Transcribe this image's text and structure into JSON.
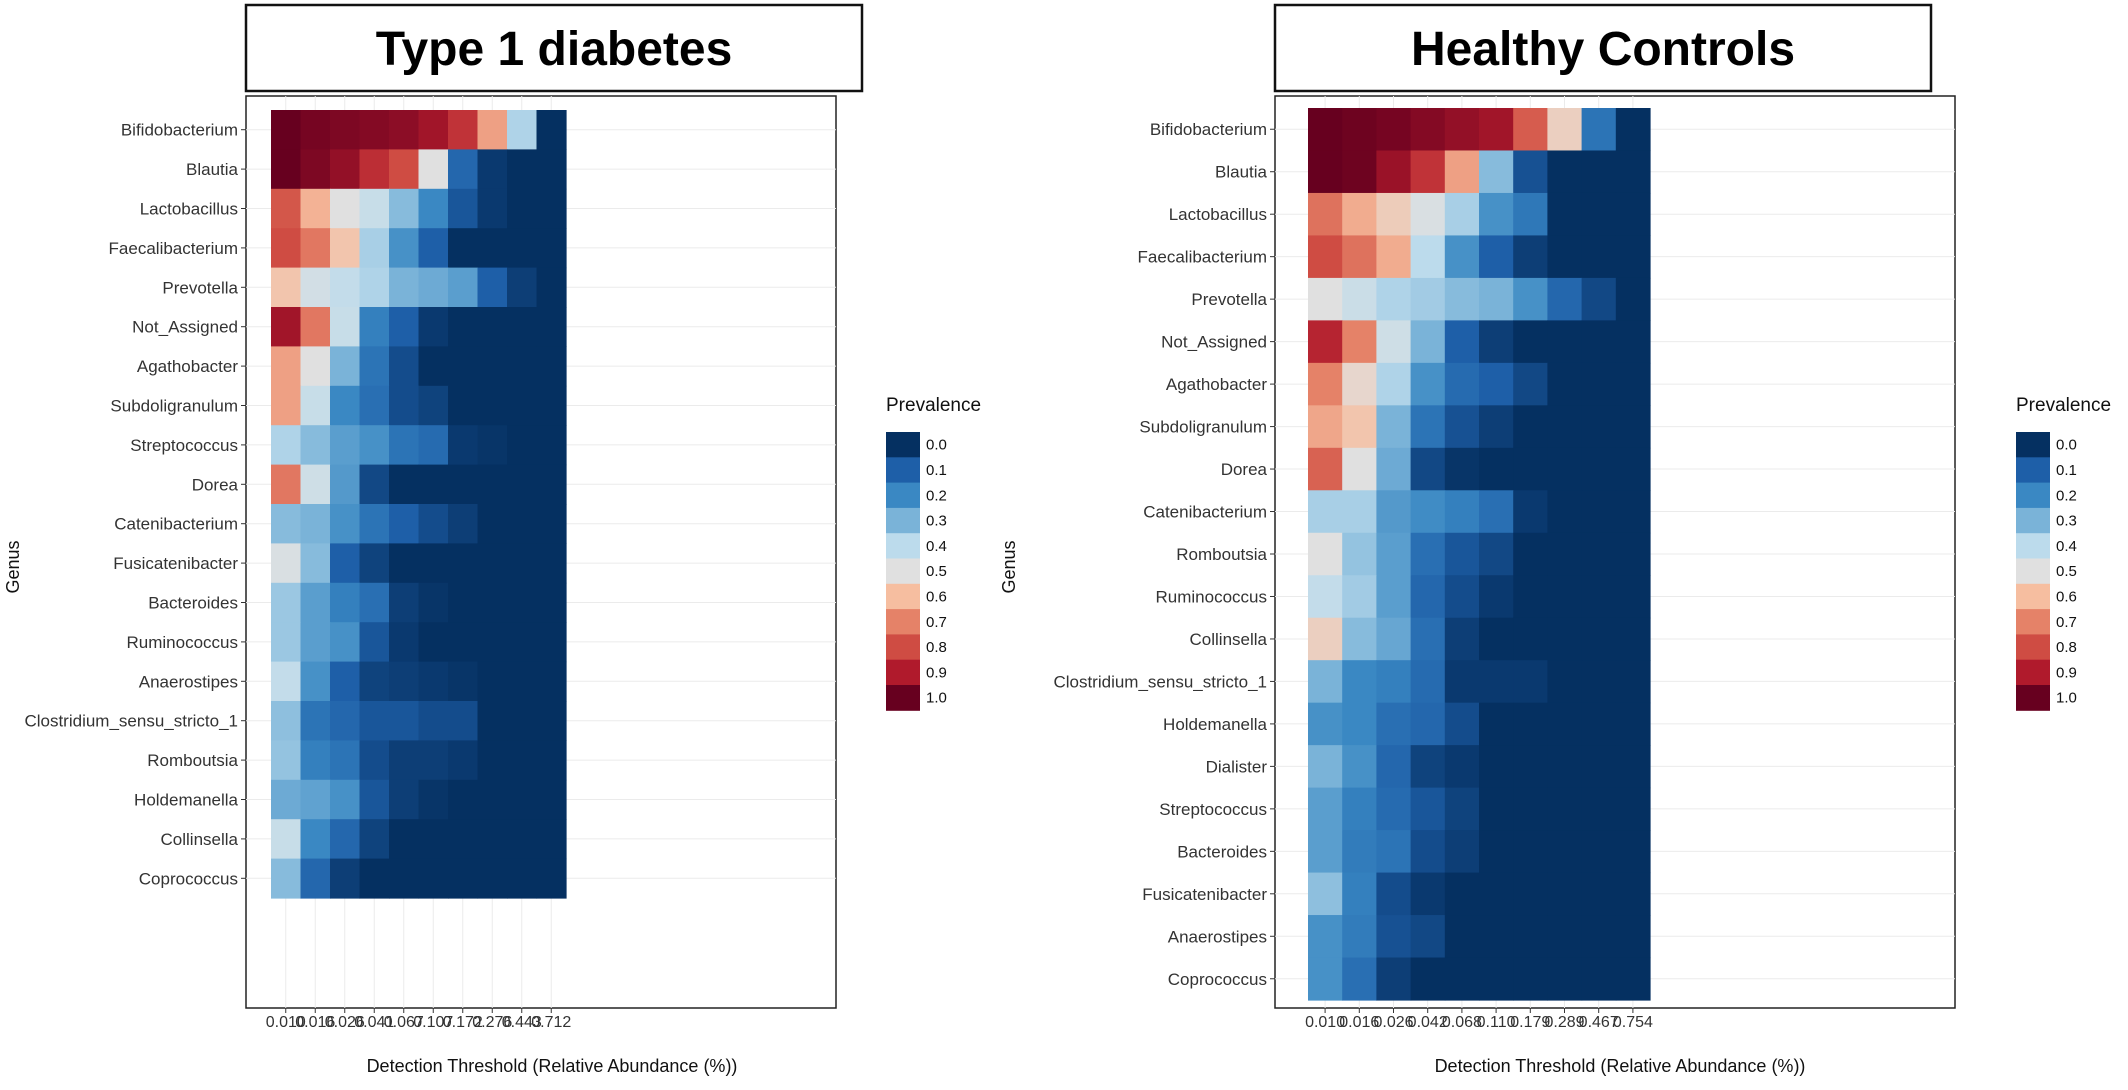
{
  "chart_data": [
    {
      "type": "heatmap",
      "title": "Type 1 diabetes",
      "xlabel": "Detection Threshold (Relative Abundance (%))",
      "ylabel": "Genus",
      "x": [
        "0.010",
        "0.016",
        "0.026",
        "0.041",
        "0.067",
        "0.107",
        "0.172",
        "0.276",
        "0.443",
        "0.712"
      ],
      "y": [
        "Bifidobacterium",
        "Blautia",
        "Lactobacillus",
        "Faecalibacterium",
        "Prevotella",
        "Not_Assigned",
        "Agathobacter",
        "Subdoligranulum",
        "Streptococcus",
        "Dorea",
        "Catenibacterium",
        "Fusicatenibacter",
        "Bacteroides",
        "Ruminococcus",
        "Anaerostipes",
        "Clostridium_sensu_stricto_1",
        "Romboutsia",
        "Holdemanella",
        "Collinsella",
        "Coprococcus"
      ],
      "values": [
        [
          1.0,
          0.98,
          0.97,
          0.96,
          0.95,
          0.92,
          0.85,
          0.65,
          0.38,
          0.0
        ],
        [
          1.0,
          0.97,
          0.94,
          0.86,
          0.8,
          0.5,
          0.12,
          0.02,
          0.0,
          0.0
        ],
        [
          0.78,
          0.62,
          0.5,
          0.43,
          0.32,
          0.2,
          0.08,
          0.02,
          0.0,
          0.0
        ],
        [
          0.8,
          0.72,
          0.58,
          0.37,
          0.22,
          0.1,
          0.0,
          0.0,
          0.0,
          0.0
        ],
        [
          0.58,
          0.46,
          0.42,
          0.38,
          0.3,
          0.28,
          0.25,
          0.1,
          0.03,
          0.0
        ],
        [
          0.92,
          0.72,
          0.43,
          0.18,
          0.1,
          0.02,
          0.0,
          0.0,
          0.0,
          0.0
        ],
        [
          0.65,
          0.5,
          0.3,
          0.15,
          0.06,
          0.0,
          0.0,
          0.0,
          0.0,
          0.0
        ],
        [
          0.65,
          0.43,
          0.2,
          0.14,
          0.06,
          0.04,
          0.0,
          0.0,
          0.0,
          0.0
        ],
        [
          0.38,
          0.32,
          0.25,
          0.22,
          0.15,
          0.13,
          0.02,
          0.01,
          0.0,
          0.0
        ],
        [
          0.72,
          0.45,
          0.24,
          0.05,
          0.0,
          0.0,
          0.0,
          0.0,
          0.0,
          0.0
        ],
        [
          0.32,
          0.3,
          0.22,
          0.15,
          0.1,
          0.06,
          0.03,
          0.0,
          0.0,
          0.0
        ],
        [
          0.48,
          0.32,
          0.1,
          0.04,
          0.0,
          0.0,
          0.0,
          0.0,
          0.0,
          0.0
        ],
        [
          0.35,
          0.25,
          0.18,
          0.14,
          0.03,
          0.01,
          0.0,
          0.0,
          0.0,
          0.0
        ],
        [
          0.35,
          0.25,
          0.22,
          0.08,
          0.02,
          0.0,
          0.0,
          0.0,
          0.0,
          0.0
        ],
        [
          0.42,
          0.22,
          0.1,
          0.04,
          0.03,
          0.02,
          0.01,
          0.0,
          0.0,
          0.0
        ],
        [
          0.33,
          0.15,
          0.12,
          0.08,
          0.08,
          0.06,
          0.06,
          0.0,
          0.0,
          0.0
        ],
        [
          0.34,
          0.18,
          0.15,
          0.06,
          0.03,
          0.03,
          0.02,
          0.0,
          0.0,
          0.0
        ],
        [
          0.28,
          0.26,
          0.22,
          0.08,
          0.03,
          0.01,
          0.0,
          0.0,
          0.0,
          0.0
        ],
        [
          0.43,
          0.2,
          0.12,
          0.04,
          0.0,
          0.0,
          0.0,
          0.0,
          0.0,
          0.0
        ],
        [
          0.32,
          0.12,
          0.03,
          0.0,
          0.0,
          0.0,
          0.0,
          0.0,
          0.0,
          0.0
        ]
      ],
      "legend_title": "Prevalence",
      "legend_ticks": [
        "0.0",
        "0.1",
        "0.2",
        "0.3",
        "0.4",
        "0.5",
        "0.6",
        "0.7",
        "0.8",
        "0.9",
        "1.0"
      ],
      "colors": [
        "#053061",
        "#1e5fa8",
        "#3a88c3",
        "#7ab3d8",
        "#bcdbec",
        "#e0e0e0",
        "#f6bea0",
        "#e58268",
        "#cf4c43",
        "#b01a2c",
        "#67001f"
      ]
    },
    {
      "type": "heatmap",
      "title": "Healthy Controls",
      "xlabel": "Detection Threshold (Relative Abundance (%))",
      "ylabel": "Genus",
      "x": [
        "0.010",
        "0.016",
        "0.026",
        "0.042",
        "0.068",
        "0.110",
        "0.179",
        "0.289",
        "0.467",
        "0.754"
      ],
      "y": [
        "Bifidobacterium",
        "Blautia",
        "Lactobacillus",
        "Faecalibacterium",
        "Prevotella",
        "Not_Assigned",
        "Agathobacter",
        "Subdoligranulum",
        "Dorea",
        "Catenibacterium",
        "Romboutsia",
        "Ruminococcus",
        "Collinsella",
        "Clostridium_sensu_stricto_1",
        "Holdemanella",
        "Dialister",
        "Streptococcus",
        "Bacteroides",
        "Fusicatenibacter",
        "Anaerostipes",
        "Coprococcus"
      ],
      "values": [
        [
          1.0,
          0.99,
          0.98,
          0.96,
          0.94,
          0.92,
          0.77,
          0.55,
          0.15,
          0.0
        ],
        [
          1.0,
          0.99,
          0.93,
          0.85,
          0.65,
          0.32,
          0.07,
          0.0,
          0.0,
          0.0
        ],
        [
          0.73,
          0.63,
          0.56,
          0.48,
          0.37,
          0.22,
          0.16,
          0.0,
          0.0,
          0.0
        ],
        [
          0.8,
          0.73,
          0.63,
          0.4,
          0.22,
          0.1,
          0.03,
          0.0,
          0.0,
          0.0
        ],
        [
          0.5,
          0.44,
          0.38,
          0.36,
          0.32,
          0.3,
          0.22,
          0.12,
          0.05,
          0.0
        ],
        [
          0.88,
          0.7,
          0.45,
          0.3,
          0.1,
          0.03,
          0.0,
          0.0,
          0.0,
          0.0
        ],
        [
          0.7,
          0.53,
          0.38,
          0.22,
          0.13,
          0.1,
          0.05,
          0.0,
          0.0,
          0.0
        ],
        [
          0.64,
          0.58,
          0.3,
          0.15,
          0.07,
          0.03,
          0.0,
          0.0,
          0.0,
          0.0
        ],
        [
          0.76,
          0.5,
          0.28,
          0.05,
          0.01,
          0.0,
          0.0,
          0.0,
          0.0,
          0.0
        ],
        [
          0.37,
          0.37,
          0.24,
          0.21,
          0.18,
          0.14,
          0.02,
          0.0,
          0.0,
          0.0
        ],
        [
          0.5,
          0.34,
          0.25,
          0.14,
          0.08,
          0.05,
          0.0,
          0.0,
          0.0,
          0.0
        ],
        [
          0.42,
          0.36,
          0.25,
          0.12,
          0.06,
          0.02,
          0.0,
          0.0,
          0.0,
          0.0
        ],
        [
          0.55,
          0.32,
          0.27,
          0.14,
          0.03,
          0.0,
          0.0,
          0.0,
          0.0,
          0.0
        ],
        [
          0.3,
          0.2,
          0.18,
          0.13,
          0.02,
          0.02,
          0.02,
          0.0,
          0.0,
          0.0
        ],
        [
          0.22,
          0.2,
          0.14,
          0.12,
          0.06,
          0.0,
          0.0,
          0.0,
          0.0,
          0.0
        ],
        [
          0.3,
          0.22,
          0.12,
          0.04,
          0.02,
          0.0,
          0.0,
          0.0,
          0.0,
          0.0
        ],
        [
          0.25,
          0.18,
          0.13,
          0.08,
          0.04,
          0.0,
          0.0,
          0.0,
          0.0,
          0.0
        ],
        [
          0.25,
          0.17,
          0.15,
          0.06,
          0.03,
          0.0,
          0.0,
          0.0,
          0.0,
          0.0
        ],
        [
          0.33,
          0.18,
          0.06,
          0.02,
          0.0,
          0.0,
          0.0,
          0.0,
          0.0,
          0.0
        ],
        [
          0.22,
          0.17,
          0.07,
          0.05,
          0.0,
          0.0,
          0.0,
          0.0,
          0.0,
          0.0
        ],
        [
          0.22,
          0.14,
          0.03,
          0.0,
          0.0,
          0.0,
          0.0,
          0.0,
          0.0,
          0.0
        ]
      ],
      "legend_title": "Prevalence",
      "legend_ticks": [
        "0.0",
        "0.1",
        "0.2",
        "0.3",
        "0.4",
        "0.5",
        "0.6",
        "0.7",
        "0.8",
        "0.9",
        "1.0"
      ],
      "colors": [
        "#053061",
        "#1e5fa8",
        "#3a88c3",
        "#7ab3d8",
        "#bcdbec",
        "#e0e0e0",
        "#f6bea0",
        "#e58268",
        "#cf4c43",
        "#b01a2c",
        "#67001f"
      ]
    }
  ]
}
